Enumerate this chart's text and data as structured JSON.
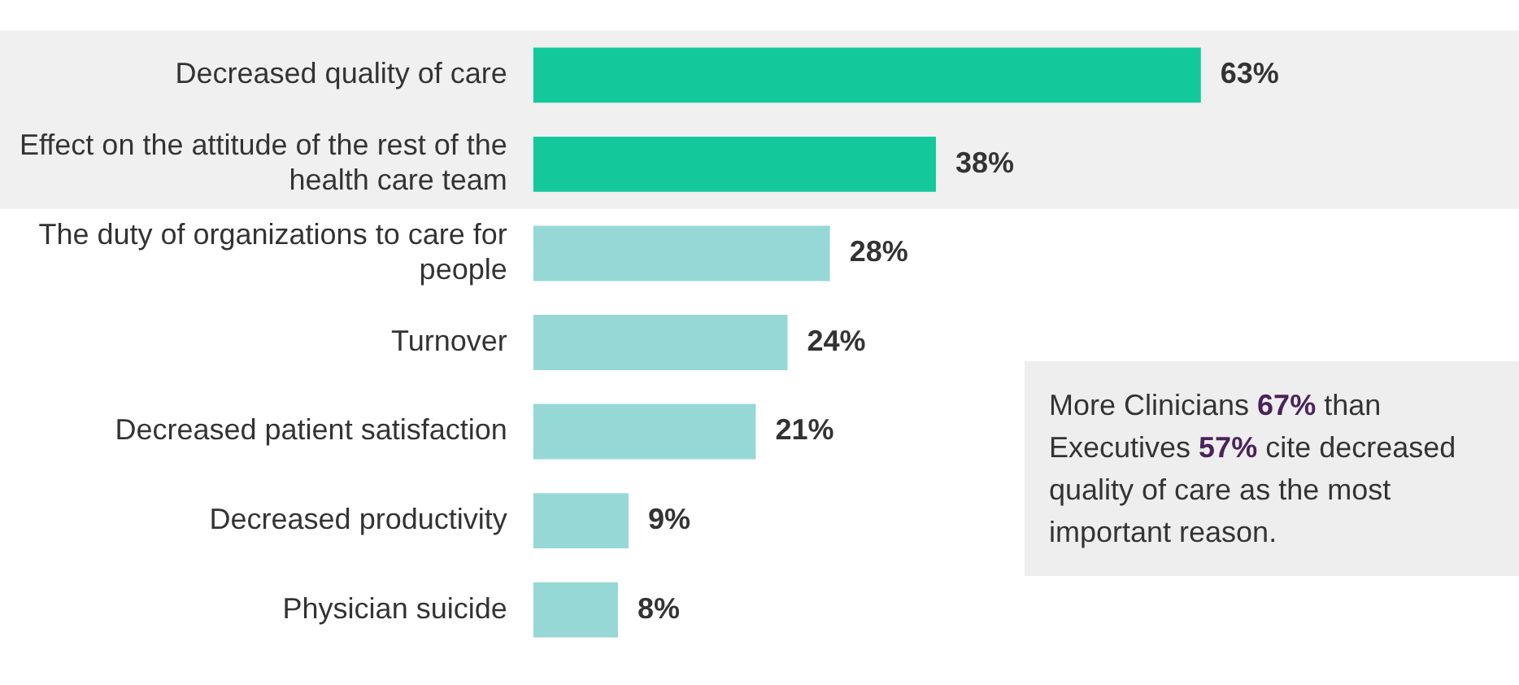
{
  "chart_data": {
    "type": "bar",
    "orientation": "horizontal",
    "categories": [
      "Decreased quality of care",
      "Effect on the attitude of the rest of the health care team",
      "The duty of organizations to care for people",
      "Turnover",
      "Decreased patient satisfaction",
      "Decreased productivity",
      "Physician suicide"
    ],
    "values": [
      63,
      38,
      28,
      24,
      21,
      9,
      8
    ],
    "colors": [
      "#13c99b",
      "#13c99b",
      "#96d8d6",
      "#96d8d6",
      "#96d8d6",
      "#96d8d6",
      "#96d8d6"
    ],
    "value_labels": [
      "63%",
      "38%",
      "28%",
      "24%",
      "21%",
      "9%",
      "8%"
    ],
    "tick_labels": "y",
    "legend": false,
    "bands": [
      {
        "axis": "y",
        "from": "Decreased quality of care",
        "to": "Effect on the attitude of the rest of the health care team",
        "color": "#f0f0f0"
      }
    ],
    "annotations": [
      "More Clinicians 67% than Executives 57% cite decreased quality of care as the most important reason."
    ]
  }
}
